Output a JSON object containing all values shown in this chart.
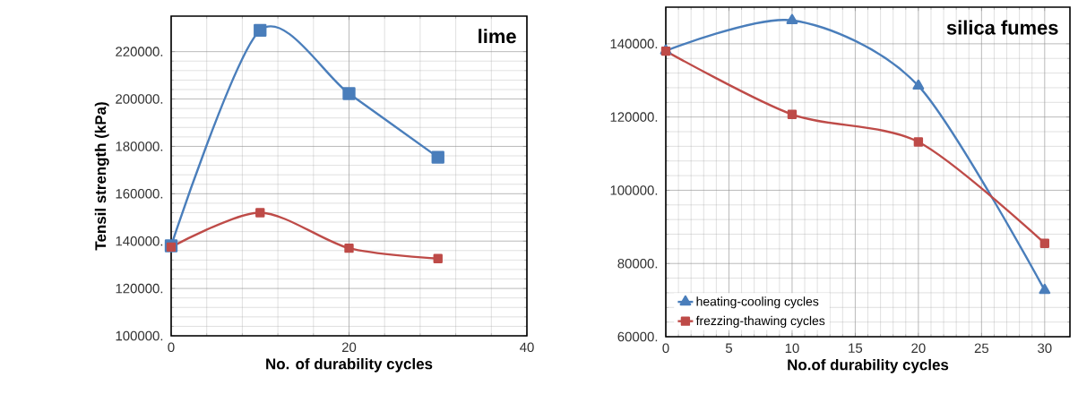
{
  "chart_data": [
    {
      "type": "line",
      "xlabel": "No. of  durability cycles",
      "ylabel": "Tensil strength (kPa)",
      "annotations": [
        "lime"
      ],
      "x": [
        0,
        10,
        20,
        30
      ],
      "series": [
        {
          "color": "#4a7ebb",
          "marker": "square",
          "values": [
            138000,
            229000,
            202300,
            175400
          ]
        },
        {
          "color": "#be4b48",
          "marker": "square",
          "values": [
            137500,
            152000,
            137000,
            132600
          ]
        }
      ],
      "xlim": [
        0,
        40
      ],
      "xticks": [
        0,
        20,
        40
      ],
      "ylim": [
        100000,
        235000
      ],
      "yticks": [
        {
          "value": 100000,
          "label": "100000."
        },
        {
          "value": 120000,
          "label": "120000."
        },
        {
          "value": 140000,
          "label": "140000."
        },
        {
          "value": 160000,
          "label": "160000."
        },
        {
          "value": 180000,
          "label": "180000."
        },
        {
          "value": 200000,
          "label": "200000."
        },
        {
          "value": 220000,
          "label": "220000."
        }
      ],
      "grid": true,
      "line_style": "solid"
    },
    {
      "type": "line",
      "xlabel": "No.of  durability cycles",
      "annotations": [
        "silica fumes"
      ],
      "x": [
        0,
        10,
        20,
        30
      ],
      "series": [
        {
          "name": "heating-cooling cycles",
          "color": "#4a7ebb",
          "marker": "triangle",
          "values": [
            138100,
            146400,
            128500,
            72700
          ]
        },
        {
          "name": "frezzing-thawing cycles",
          "color": "#be4b48",
          "marker": "square",
          "values": [
            138000,
            120700,
            113200,
            85500
          ]
        }
      ],
      "xlim": [
        0,
        32
      ],
      "xticks": [
        0,
        5,
        10,
        15,
        20,
        25,
        30
      ],
      "ylim": [
        60000,
        150000
      ],
      "yticks": [
        {
          "value": 60000,
          "label": "60000."
        },
        {
          "value": 80000,
          "label": "80000."
        },
        {
          "value": 100000,
          "label": "100000."
        },
        {
          "value": 120000,
          "label": "120000."
        },
        {
          "value": 140000,
          "label": "140000."
        }
      ],
      "grid": true,
      "legend": "bottom left",
      "line_style": "solid"
    }
  ]
}
